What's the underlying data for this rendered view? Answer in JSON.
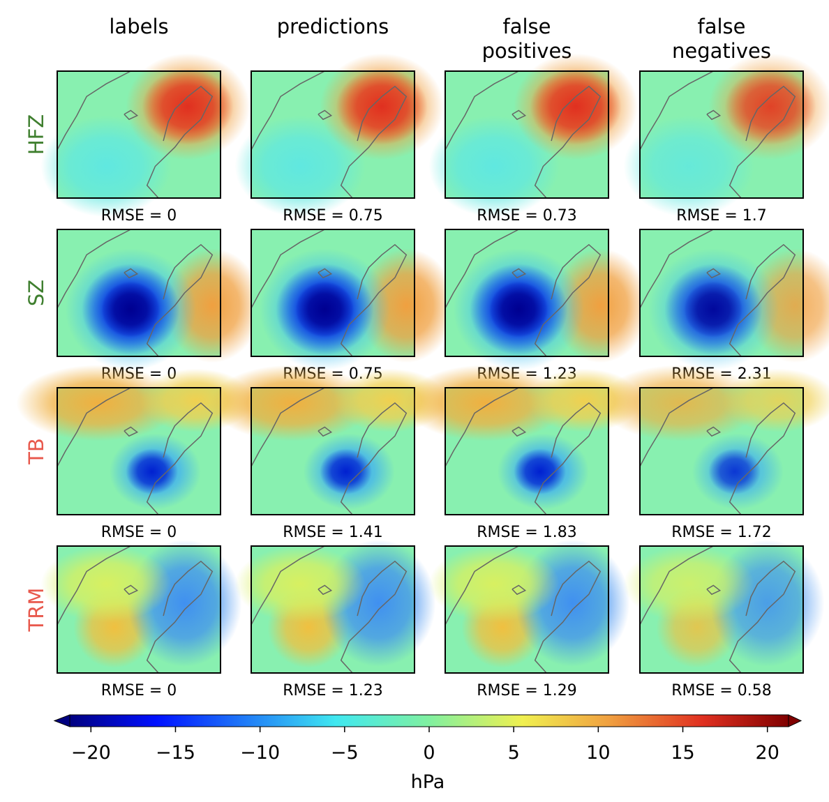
{
  "columns": [
    "labels",
    "predictions",
    "false\npositives",
    "false\nnegatives"
  ],
  "rows": [
    {
      "label": "HFZ",
      "color": "#3f7f2f",
      "rmse": [
        "RMSE = 0",
        "RMSE = 0.75",
        "RMSE = 0.73",
        "RMSE = 1.7"
      ]
    },
    {
      "label": "SZ",
      "color": "#3f7f2f",
      "rmse": [
        "RMSE = 0",
        "RMSE = 0.75",
        "RMSE = 1.23",
        "RMSE = 2.31"
      ]
    },
    {
      "label": "TB",
      "color": "#e8584c",
      "rmse": [
        "RMSE = 0",
        "RMSE = 1.41",
        "RMSE = 1.83",
        "RMSE = 1.72"
      ]
    },
    {
      "label": "TRM",
      "color": "#e8584c",
      "rmse": [
        "RMSE = 0",
        "RMSE = 1.23",
        "RMSE = 1.29",
        "RMSE = 0.58"
      ]
    }
  ],
  "colorbar": {
    "label": "hPa",
    "lim": [
      -21.25,
      21.25
    ],
    "ticks": [
      {
        "value": -20,
        "label": "−20"
      },
      {
        "value": -15,
        "label": "−15"
      },
      {
        "value": -10,
        "label": "−10"
      },
      {
        "value": -5,
        "label": "−5"
      },
      0,
      5,
      10,
      15,
      20
    ]
  }
}
